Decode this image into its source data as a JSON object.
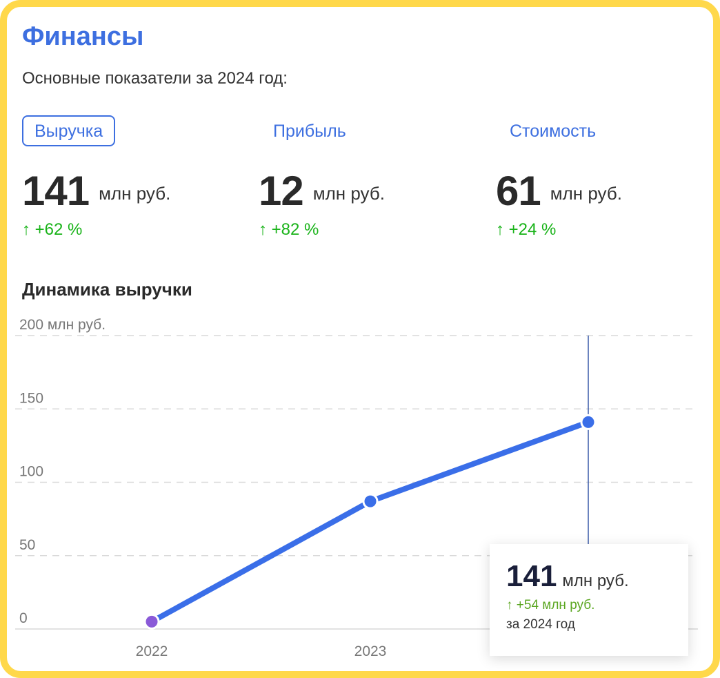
{
  "header": {
    "title": "Финансы",
    "subtitle": "Основные показатели за 2024 год:"
  },
  "tabs": [
    {
      "label": "Выручка",
      "active": true
    },
    {
      "label": "Прибыль",
      "active": false
    },
    {
      "label": "Стоимость",
      "active": false
    }
  ],
  "metrics": [
    {
      "value": "141",
      "unit": "млн руб.",
      "delta": "↑ +62 %"
    },
    {
      "value": "12",
      "unit": "млн руб.",
      "delta": "↑ +82 %"
    },
    {
      "value": "61",
      "unit": "млн руб.",
      "delta": "↑ +24 %"
    }
  ],
  "section_title": "Динамика выручки",
  "tooltip": {
    "value": "141",
    "unit": "млн руб.",
    "delta": "↑ +54 млн руб.",
    "period": "за 2024 год"
  },
  "colors": {
    "accent": "#3d6fe0",
    "positive": "#19b319",
    "border": "#ffd84a"
  },
  "chart_data": {
    "type": "line",
    "categories": [
      "2022",
      "2023",
      "2024"
    ],
    "visible_x_labels": [
      "2022",
      "2023"
    ],
    "values": [
      5,
      87,
      141
    ],
    "ylim": [
      0,
      200
    ],
    "ytick_labels": [
      "0",
      "50",
      "100",
      "150",
      "200 млн руб."
    ],
    "ytick_values": [
      0,
      50,
      100,
      150,
      200
    ],
    "grid": true,
    "highlighted_category": "2024"
  }
}
